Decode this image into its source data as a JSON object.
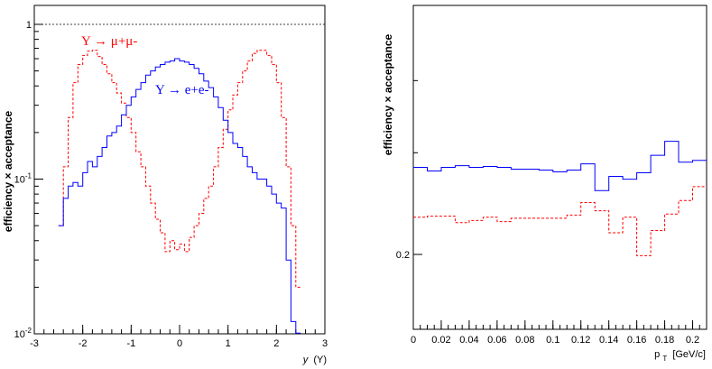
{
  "chart_data": [
    {
      "type": "line",
      "ylabel": "efficiency × acceptance",
      "xlabel_text": "y",
      "xlabel_unit": "(Υ)",
      "yscale": "log",
      "xlim": [
        -3,
        3
      ],
      "ylim": [
        0.01,
        1.2
      ],
      "x_ticks": [
        "-3",
        "-2",
        "-1",
        "0",
        "1",
        "2",
        "3"
      ],
      "y_ticks": [
        {
          "label": "1",
          "value": 1
        },
        {
          "label": "10",
          "sup": "-1",
          "value": 0.1
        },
        {
          "label": "10",
          "sup": "-2",
          "value": 0.01
        }
      ],
      "reference_line": {
        "value": 1,
        "style": "dotted"
      },
      "series": [
        {
          "name": "Υ → μ+μ-",
          "color": "#ff0000",
          "style": "dashed",
          "x": [
            -2.45,
            -2.35,
            -2.25,
            -2.15,
            -2.05,
            -1.95,
            -1.85,
            -1.75,
            -1.65,
            -1.55,
            -1.45,
            -1.35,
            -1.25,
            -1.15,
            -1.05,
            -0.95,
            -0.85,
            -0.75,
            -0.65,
            -0.55,
            -0.45,
            -0.35,
            -0.25,
            -0.15,
            -0.05,
            0.05,
            0.15,
            0.25,
            0.35,
            0.45,
            0.55,
            0.65,
            0.75,
            0.85,
            0.95,
            1.05,
            1.15,
            1.25,
            1.35,
            1.45,
            1.55,
            1.65,
            1.75,
            1.85,
            1.95,
            2.05,
            2.15,
            2.25,
            2.35,
            2.45
          ],
          "values": [
            0.05,
            0.12,
            0.25,
            0.42,
            0.55,
            0.63,
            0.67,
            0.68,
            0.62,
            0.55,
            0.48,
            0.42,
            0.36,
            0.31,
            0.25,
            0.2,
            0.15,
            0.12,
            0.09,
            0.07,
            0.055,
            0.045,
            0.034,
            0.04,
            0.035,
            0.038,
            0.034,
            0.042,
            0.05,
            0.06,
            0.075,
            0.09,
            0.12,
            0.16,
            0.21,
            0.28,
            0.35,
            0.42,
            0.5,
            0.58,
            0.65,
            0.68,
            0.68,
            0.63,
            0.55,
            0.42,
            0.25,
            0.12,
            0.05,
            0.02
          ]
        },
        {
          "name": "Υ → e+e-",
          "color": "#0000ff",
          "style": "solid",
          "x": [
            -2.45,
            -2.35,
            -2.25,
            -2.15,
            -2.05,
            -1.95,
            -1.85,
            -1.75,
            -1.65,
            -1.55,
            -1.45,
            -1.35,
            -1.25,
            -1.15,
            -1.05,
            -0.95,
            -0.85,
            -0.75,
            -0.65,
            -0.55,
            -0.45,
            -0.35,
            -0.25,
            -0.15,
            -0.05,
            0.05,
            0.15,
            0.25,
            0.35,
            0.45,
            0.55,
            0.65,
            0.75,
            0.85,
            0.95,
            1.05,
            1.15,
            1.25,
            1.35,
            1.45,
            1.55,
            1.65,
            1.75,
            1.85,
            1.95,
            2.05,
            2.15,
            2.25,
            2.35,
            2.45
          ],
          "values": [
            0.05,
            0.075,
            0.09,
            0.095,
            0.09,
            0.11,
            0.13,
            0.12,
            0.14,
            0.16,
            0.19,
            0.2,
            0.22,
            0.26,
            0.3,
            0.34,
            0.38,
            0.42,
            0.47,
            0.5,
            0.53,
            0.55,
            0.57,
            0.58,
            0.6,
            0.58,
            0.57,
            0.55,
            0.52,
            0.48,
            0.43,
            0.39,
            0.34,
            0.29,
            0.24,
            0.2,
            0.17,
            0.16,
            0.14,
            0.12,
            0.11,
            0.1,
            0.1,
            0.09,
            0.08,
            0.07,
            0.065,
            0.03,
            0.012,
            0.01
          ]
        }
      ],
      "annotations": [
        {
          "text": "Υ → μ+μ-",
          "color": "#ff0000"
        },
        {
          "text": "Υ → e+e-",
          "color": "#0000ff"
        }
      ]
    },
    {
      "type": "line",
      "ylabel": "efficiency × acceptance",
      "xlabel_text": "p",
      "xlabel_sub": "T",
      "xlabel_unit": "[GeV/c]",
      "yscale": "log",
      "xlim": [
        0,
        0.21
      ],
      "x_ticks": [
        "0",
        "0.02",
        "0.04",
        "0.06",
        "0.08",
        "0.1",
        "0.12",
        "0.14",
        "0.16",
        "0.18",
        "0.2"
      ],
      "y_ticks": [
        {
          "label": "0.2",
          "value": 0.2
        }
      ],
      "series": [
        {
          "name": "e+e-",
          "color": "#0000ff",
          "style": "solid",
          "x": [
            0.005,
            0.015,
            0.025,
            0.035,
            0.045,
            0.055,
            0.065,
            0.075,
            0.085,
            0.095,
            0.105,
            0.115,
            0.125,
            0.135,
            0.145,
            0.155,
            0.165,
            0.175,
            0.185,
            0.195,
            0.205
          ],
          "values": [
            0.283,
            0.279,
            0.283,
            0.285,
            0.283,
            0.284,
            0.283,
            0.281,
            0.281,
            0.28,
            0.278,
            0.28,
            0.287,
            0.258,
            0.273,
            0.27,
            0.277,
            0.297,
            0.314,
            0.289,
            0.291
          ]
        },
        {
          "name": "μ+μ-",
          "color": "#ff0000",
          "style": "dashed",
          "x": [
            0.005,
            0.015,
            0.025,
            0.035,
            0.045,
            0.055,
            0.065,
            0.075,
            0.085,
            0.095,
            0.105,
            0.115,
            0.125,
            0.135,
            0.145,
            0.155,
            0.165,
            0.175,
            0.185,
            0.195,
            0.205
          ],
          "values": [
            0.232,
            0.233,
            0.233,
            0.227,
            0.229,
            0.232,
            0.228,
            0.231,
            0.231,
            0.231,
            0.231,
            0.234,
            0.246,
            0.238,
            0.218,
            0.232,
            0.199,
            0.22,
            0.235,
            0.248,
            0.262
          ]
        }
      ]
    }
  ]
}
